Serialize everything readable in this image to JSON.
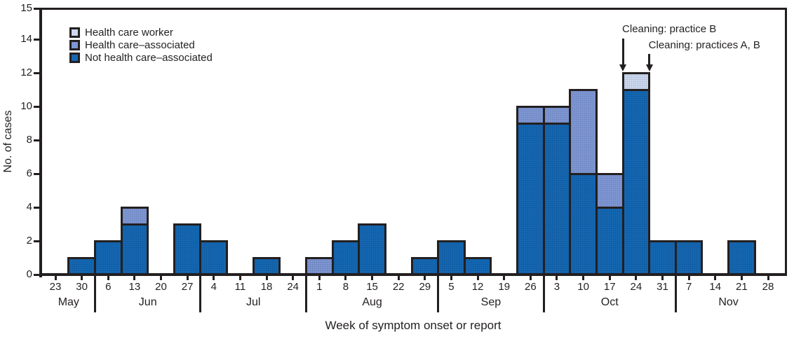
{
  "figure": {
    "y_axis_label": "No. of cases",
    "x_axis_label": "Week of symptom onset or report",
    "y_ticks": [
      15,
      14,
      12,
      10,
      8,
      6,
      4,
      2,
      0
    ]
  },
  "legend": {
    "items": [
      {
        "label": "Health care worker",
        "color": "#ccd8ee"
      },
      {
        "label": "Health care–associated",
        "color": "#7e97d3"
      },
      {
        "label": "Not health care–associated",
        "color": "#1468b3"
      }
    ]
  },
  "annotations": [
    {
      "label": "Cleaning: practice B",
      "week_boundary": 21.5
    },
    {
      "label": "Cleaning: practices A, B",
      "week_boundary": 22.5
    }
  ],
  "chart_data": {
    "type": "bar",
    "stacked": true,
    "title": "",
    "xlabel": "Week of symptom onset or report",
    "ylabel": "No. of cases",
    "ylim": [
      0,
      15
    ],
    "grid": false,
    "legend_position": "top-left-inside",
    "ink_color": "#231f20",
    "x_tick_labels": [
      "23",
      "30",
      "6",
      "13",
      "20",
      "27",
      "4",
      "11",
      "18",
      "24",
      "1",
      "8",
      "15",
      "22",
      "29",
      "5",
      "12",
      "19",
      "26",
      "3",
      "10",
      "17",
      "24",
      "31",
      "7",
      "14",
      "21",
      "28"
    ],
    "months": [
      {
        "name": "May",
        "start": 0,
        "end": 1
      },
      {
        "name": "Jun",
        "start": 2,
        "end": 5
      },
      {
        "name": "Jul",
        "start": 6,
        "end": 9
      },
      {
        "name": "Aug",
        "start": 10,
        "end": 14
      },
      {
        "name": "Sep",
        "start": 15,
        "end": 18
      },
      {
        "name": "Oct",
        "start": 19,
        "end": 23
      },
      {
        "name": "Nov",
        "start": 24,
        "end": 27
      }
    ],
    "series": [
      {
        "name": "Not health care–associated",
        "color": "#1468b3",
        "values": [
          0,
          1,
          2,
          3,
          0,
          3,
          2,
          0,
          1,
          0,
          0,
          2,
          3,
          0,
          1,
          2,
          1,
          0,
          9,
          9,
          6,
          4,
          11,
          2,
          2,
          0,
          2,
          0
        ]
      },
      {
        "name": "Health care–associated",
        "color": "#7e97d3",
        "values": [
          0,
          0,
          0,
          1,
          0,
          0,
          0,
          0,
          0,
          0,
          1,
          0,
          0,
          0,
          0,
          0,
          0,
          0,
          1,
          1,
          5,
          2,
          0,
          0,
          0,
          0,
          0,
          0
        ]
      },
      {
        "name": "Health care worker",
        "color": "#ccd8ee",
        "values": [
          0,
          0,
          0,
          0,
          0,
          0,
          0,
          0,
          0,
          0,
          0,
          0,
          0,
          0,
          0,
          0,
          0,
          0,
          0,
          0,
          0,
          0,
          1,
          0,
          0,
          0,
          0,
          0
        ]
      }
    ]
  }
}
